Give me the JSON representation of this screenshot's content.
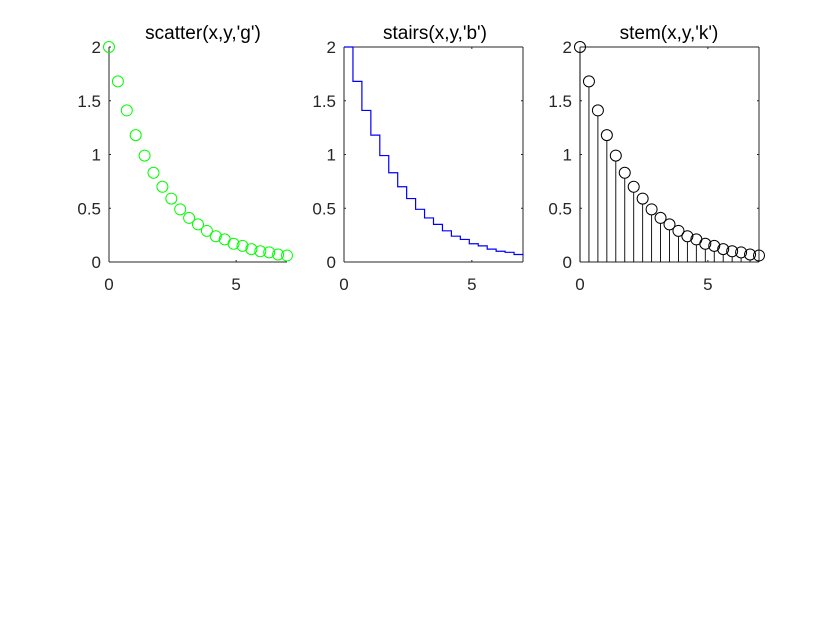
{
  "chart_data": [
    {
      "type": "scatter",
      "title": "scatter(x,y,'g')",
      "color": "#00ff00",
      "marker": "circle-open",
      "xlim": [
        0,
        7
      ],
      "ylim": [
        0,
        2
      ],
      "xticks": [
        {
          "v": 0,
          "label": "0"
        },
        {
          "v": 5,
          "label": "5"
        }
      ],
      "yticks": [
        {
          "v": 0,
          "label": "0"
        },
        {
          "v": 0.5,
          "label": "0.5"
        },
        {
          "v": 1,
          "label": "1"
        },
        {
          "v": 1.5,
          "label": "1.5"
        },
        {
          "v": 2,
          "label": "2"
        }
      ],
      "x": [
        0,
        0.35,
        0.7,
        1.05,
        1.4,
        1.75,
        2.1,
        2.45,
        2.8,
        3.15,
        3.5,
        3.85,
        4.2,
        4.55,
        4.9,
        5.25,
        5.6,
        5.95,
        6.3,
        6.65,
        7.0
      ],
      "y": [
        2.0,
        1.68,
        1.41,
        1.18,
        0.99,
        0.83,
        0.7,
        0.59,
        0.49,
        0.41,
        0.35,
        0.29,
        0.24,
        0.21,
        0.17,
        0.15,
        0.12,
        0.1,
        0.09,
        0.07,
        0.06
      ]
    },
    {
      "type": "line",
      "style": "stairs",
      "title": "stairs(x,y,'b')",
      "color": "#0000ff",
      "xlim": [
        0,
        7
      ],
      "ylim": [
        0,
        2
      ],
      "xticks": [
        {
          "v": 0,
          "label": "0"
        },
        {
          "v": 5,
          "label": "5"
        }
      ],
      "yticks": [
        {
          "v": 0,
          "label": "0"
        },
        {
          "v": 0.5,
          "label": "0.5"
        },
        {
          "v": 1,
          "label": "1"
        },
        {
          "v": 1.5,
          "label": "1.5"
        },
        {
          "v": 2,
          "label": "2"
        }
      ],
      "x": [
        0,
        0.35,
        0.7,
        1.05,
        1.4,
        1.75,
        2.1,
        2.45,
        2.8,
        3.15,
        3.5,
        3.85,
        4.2,
        4.55,
        4.9,
        5.25,
        5.6,
        5.95,
        6.3,
        6.65,
        7.0
      ],
      "y": [
        2.0,
        1.68,
        1.41,
        1.18,
        0.99,
        0.83,
        0.7,
        0.59,
        0.49,
        0.41,
        0.35,
        0.29,
        0.24,
        0.21,
        0.17,
        0.15,
        0.12,
        0.1,
        0.09,
        0.07,
        0.06
      ]
    },
    {
      "type": "scatter",
      "style": "stem",
      "title": "stem(x,y,'k')",
      "color": "#000000",
      "marker": "circle-open",
      "xlim": [
        0,
        7
      ],
      "ylim": [
        0,
        2
      ],
      "xticks": [
        {
          "v": 0,
          "label": "0"
        },
        {
          "v": 5,
          "label": "5"
        }
      ],
      "yticks": [
        {
          "v": 0,
          "label": "0"
        },
        {
          "v": 0.5,
          "label": "0.5"
        },
        {
          "v": 1,
          "label": "1"
        },
        {
          "v": 1.5,
          "label": "1.5"
        },
        {
          "v": 2,
          "label": "2"
        }
      ],
      "x": [
        0,
        0.35,
        0.7,
        1.05,
        1.4,
        1.75,
        2.1,
        2.45,
        2.8,
        3.15,
        3.5,
        3.85,
        4.2,
        4.55,
        4.9,
        5.25,
        5.6,
        5.95,
        6.3,
        6.65,
        7.0
      ],
      "y": [
        2.0,
        1.68,
        1.41,
        1.18,
        0.99,
        0.83,
        0.7,
        0.59,
        0.49,
        0.41,
        0.35,
        0.29,
        0.24,
        0.21,
        0.17,
        0.15,
        0.12,
        0.1,
        0.09,
        0.07,
        0.06
      ]
    }
  ]
}
